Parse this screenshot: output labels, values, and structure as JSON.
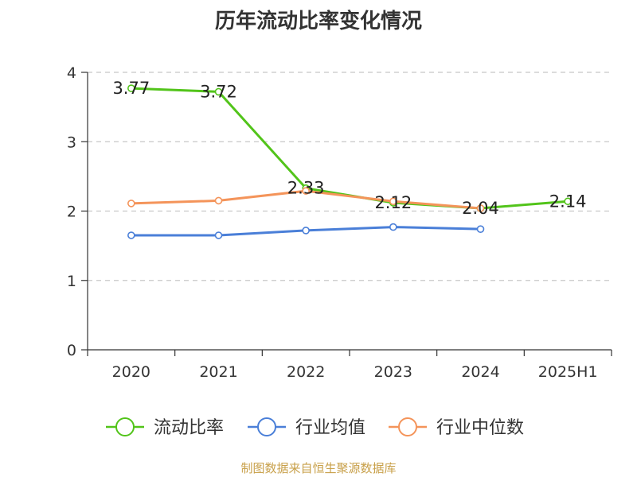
{
  "chart_data": {
    "type": "line",
    "title": "历年流动比率变化情况",
    "categories": [
      "2020",
      "2021",
      "2022",
      "2023",
      "2024",
      "2025H1"
    ],
    "ylim": [
      0,
      4
    ],
    "yticks": [
      "0",
      "1",
      "2",
      "3",
      "4"
    ],
    "grid": true,
    "legend": "bottom",
    "series": [
      {
        "name": "流动比率",
        "color": "#52c41a",
        "values": [
          3.77,
          3.72,
          2.33,
          2.12,
          2.04,
          2.14
        ],
        "labels": [
          "3.77",
          "3.72",
          "2.33",
          "2.12",
          "2.04",
          "2.14"
        ]
      },
      {
        "name": "行业均值",
        "color": "#4a7fd8",
        "values": [
          1.65,
          1.65,
          1.72,
          1.77,
          1.74,
          null
        ]
      },
      {
        "name": "行业中位数",
        "color": "#f4945a",
        "values": [
          2.11,
          2.15,
          2.29,
          2.14,
          2.04,
          null
        ]
      }
    ]
  },
  "source": "制图数据来自恒生聚源数据库"
}
